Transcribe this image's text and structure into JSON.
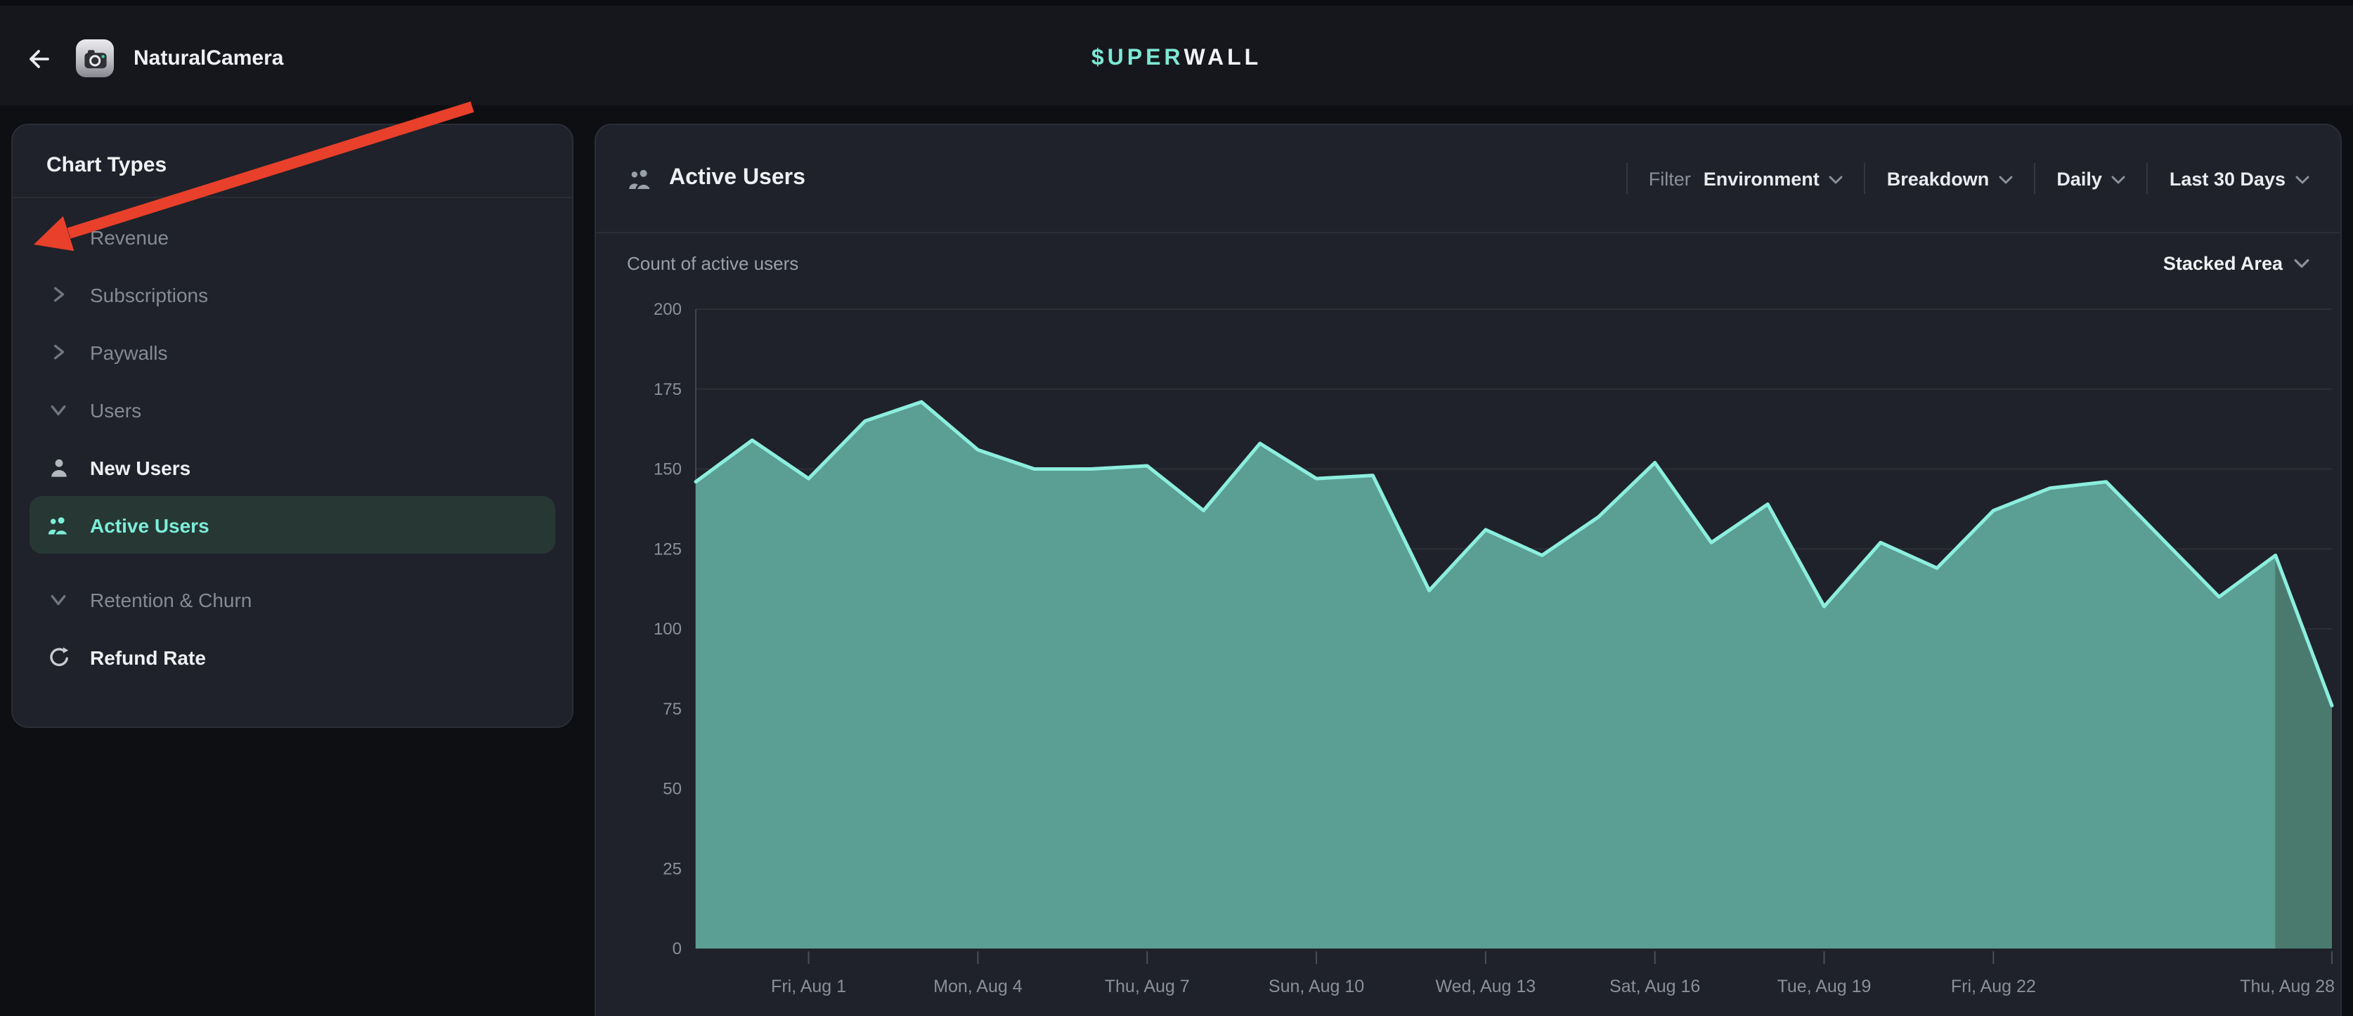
{
  "top_bar": {
    "app_name": "NaturalCamera",
    "logo_teal": "$UPER",
    "logo_white": "WALL"
  },
  "sidebar": {
    "title": "Chart Types",
    "items": [
      {
        "label": "Revenue",
        "icon": "chevron-right",
        "type": "group",
        "active": false,
        "gap_before": false
      },
      {
        "label": "Subscriptions",
        "icon": "chevron-right",
        "type": "group",
        "active": false,
        "gap_before": false
      },
      {
        "label": "Paywalls",
        "icon": "chevron-right",
        "type": "group",
        "active": false,
        "gap_before": false
      },
      {
        "label": "Users",
        "icon": "chevron-down",
        "type": "group",
        "active": false,
        "gap_before": false
      },
      {
        "label": "New Users",
        "icon": "person",
        "type": "leaf",
        "active": false,
        "gap_before": false
      },
      {
        "label": "Active Users",
        "icon": "people",
        "type": "leaf",
        "active": true,
        "gap_before": false
      },
      {
        "label": "Retention & Churn",
        "icon": "chevron-down",
        "type": "group",
        "active": false,
        "gap_before": true
      },
      {
        "label": "Refund Rate",
        "icon": "refresh",
        "type": "leaf",
        "active": false,
        "gap_before": false
      }
    ]
  },
  "main": {
    "title": "Active Users",
    "subtitle": "Count of active users",
    "chart_type_selector": "Stacked Area",
    "filters": {
      "filter_label": "Filter",
      "environment": "Environment",
      "breakdown": "Breakdown",
      "granularity": "Daily",
      "date_range": "Last 30 Days"
    }
  },
  "annotation": {
    "type": "red-arrow",
    "points_at": "Revenue"
  },
  "colors": {
    "accent": "#7ceed9",
    "chart_line": "#8ceede",
    "chart_area": "#5b9e93",
    "chart_area_partial": "#4a7a6e",
    "gridline": "#2c3036",
    "axis_line": "#41454c",
    "tick": "#4a4f57",
    "axis_label": "#8a9099",
    "arrow_red": "#e8402b",
    "active_pill_bg": "#273834"
  },
  "chart_data": {
    "type": "area",
    "title": "Active Users",
    "ylabel": "Count of active users",
    "xlabel": "",
    "ylim": [
      0,
      200
    ],
    "y_ticks": [
      0,
      25,
      50,
      75,
      100,
      125,
      150,
      175,
      200
    ],
    "grid": true,
    "legend": false,
    "x": [
      "Jul 30",
      "Jul 31",
      "Aug 1",
      "Aug 2",
      "Aug 3",
      "Aug 4",
      "Aug 5",
      "Aug 6",
      "Aug 7",
      "Aug 8",
      "Aug 9",
      "Aug 10",
      "Aug 11",
      "Aug 12",
      "Aug 13",
      "Aug 14",
      "Aug 15",
      "Aug 16",
      "Aug 17",
      "Aug 18",
      "Aug 19",
      "Aug 20",
      "Aug 21",
      "Aug 22",
      "Aug 23",
      "Aug 24",
      "Aug 25",
      "Aug 26",
      "Aug 27",
      "Aug 28"
    ],
    "values": [
      146,
      159,
      147,
      165,
      171,
      156,
      150,
      150,
      151,
      137,
      158,
      147,
      148,
      112,
      131,
      123,
      135,
      152,
      127,
      139,
      107,
      127,
      119,
      137,
      144,
      146,
      128,
      110,
      123,
      76
    ],
    "x_tick_labels": [
      {
        "index": 2,
        "label": "Fri, Aug 1"
      },
      {
        "index": 5,
        "label": "Mon, Aug 4"
      },
      {
        "index": 8,
        "label": "Thu, Aug 7"
      },
      {
        "index": 11,
        "label": "Sun, Aug 10"
      },
      {
        "index": 14,
        "label": "Wed, Aug 13"
      },
      {
        "index": 17,
        "label": "Sat, Aug 16"
      },
      {
        "index": 20,
        "label": "Tue, Aug 19"
      },
      {
        "index": 23,
        "label": "Fri, Aug 22"
      },
      {
        "index": 29,
        "label": "Thu, Aug 28"
      }
    ],
    "partial_last_segment": true
  }
}
